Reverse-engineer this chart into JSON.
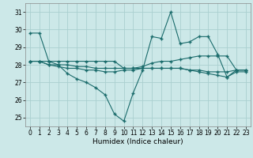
{
  "xlabel": "Humidex (Indice chaleur)",
  "bg_color": "#cce8e8",
  "grid_color": "#aacfcf",
  "line_color": "#1a6b6b",
  "series0": [
    29.8,
    29.8,
    28.2,
    28.0,
    27.5,
    27.2,
    27.0,
    26.7,
    26.3,
    25.2,
    24.8,
    26.4,
    27.7,
    29.6,
    29.5,
    31.0,
    29.2,
    29.3,
    29.6,
    29.6,
    28.6,
    27.3,
    27.6,
    27.6
  ],
  "series1": [
    28.2,
    28.2,
    28.2,
    28.2,
    28.2,
    28.2,
    28.2,
    28.2,
    28.2,
    28.2,
    27.8,
    27.8,
    27.9,
    28.1,
    28.2,
    28.2,
    28.3,
    28.4,
    28.5,
    28.5,
    28.5,
    28.5,
    27.7,
    27.7
  ],
  "series2": [
    28.2,
    28.2,
    28.0,
    27.9,
    27.8,
    27.8,
    27.7,
    27.7,
    27.6,
    27.6,
    27.7,
    27.7,
    27.8,
    27.8,
    27.8,
    27.8,
    27.8,
    27.7,
    27.6,
    27.5,
    27.4,
    27.3,
    27.7,
    27.7
  ],
  "series3": [
    28.2,
    28.2,
    28.0,
    28.0,
    28.0,
    27.9,
    27.9,
    27.8,
    27.8,
    27.8,
    27.8,
    27.8,
    27.8,
    27.8,
    27.8,
    27.8,
    27.8,
    27.7,
    27.7,
    27.6,
    27.6,
    27.6,
    27.7,
    27.7
  ],
  "ylim": [
    24.5,
    31.5
  ],
  "yticks": [
    25,
    26,
    27,
    28,
    29,
    30,
    31
  ],
  "xticks": [
    0,
    1,
    2,
    3,
    4,
    5,
    6,
    7,
    8,
    9,
    10,
    11,
    12,
    13,
    14,
    15,
    16,
    17,
    18,
    19,
    20,
    21,
    22,
    23
  ],
  "tick_fontsize": 5.5,
  "xlabel_fontsize": 6.5
}
